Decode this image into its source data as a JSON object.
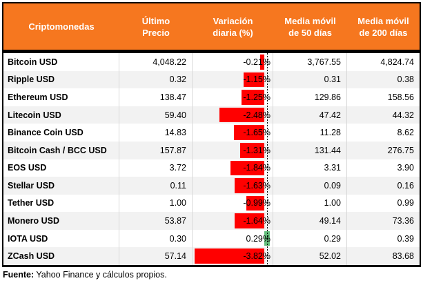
{
  "header": {
    "columns": [
      {
        "label": "Criptomonedas"
      },
      {
        "line1": "Último",
        "line2": "Precio"
      },
      {
        "line1": "Variación",
        "line2": "diaria (%)"
      },
      {
        "line1": "Media móvil",
        "line2": "de 50 días"
      },
      {
        "line1": "Media móvil",
        "line2": "de 200 días"
      }
    ]
  },
  "rows": [
    {
      "name": "Bitcoin USD",
      "last": "4,048.22",
      "variation": "-0.21%",
      "variation_value": -0.21,
      "ma50": "3,767.55",
      "ma200": "4,824.74"
    },
    {
      "name": "Ripple USD",
      "last": "0.32",
      "variation": "-1.15%",
      "variation_value": -1.15,
      "ma50": "0.31",
      "ma200": "0.38"
    },
    {
      "name": "Ethereum USD",
      "last": "138.47",
      "variation": "-1.25%",
      "variation_value": -1.25,
      "ma50": "129.86",
      "ma200": "158.56"
    },
    {
      "name": "Litecoin USD",
      "last": "59.40",
      "variation": "-2.48%",
      "variation_value": -2.48,
      "ma50": "47.42",
      "ma200": "44.32"
    },
    {
      "name": "Binance Coin USD",
      "last": "14.83",
      "variation": "-1.65%",
      "variation_value": -1.65,
      "ma50": "11.28",
      "ma200": "8.62"
    },
    {
      "name": "Bitcoin Cash / BCC USD",
      "last": "157.87",
      "variation": "-1.31%",
      "variation_value": -1.31,
      "ma50": "131.44",
      "ma200": "276.75"
    },
    {
      "name": "EOS USD",
      "last": "3.72",
      "variation": "-1.84%",
      "variation_value": -1.84,
      "ma50": "3.31",
      "ma200": "3.90"
    },
    {
      "name": "Stellar USD",
      "last": "0.11",
      "variation": "-1.63%",
      "variation_value": -1.63,
      "ma50": "0.09",
      "ma200": "0.16"
    },
    {
      "name": "Tether USD",
      "last": "1.00",
      "variation": "-0.99%",
      "variation_value": -0.99,
      "ma50": "1.00",
      "ma200": "0.99"
    },
    {
      "name": "Monero USD",
      "last": "53.87",
      "variation": "-1.64%",
      "variation_value": -1.64,
      "ma50": "49.14",
      "ma200": "73.36"
    },
    {
      "name": "IOTA USD",
      "last": "0.30",
      "variation": "0.29%",
      "variation_value": 0.29,
      "ma50": "0.29",
      "ma200": "0.39"
    },
    {
      "name": "ZCash USD",
      "last": "57.14",
      "variation": "-3.82%",
      "variation_value": -3.82,
      "ma50": "52.02",
      "ma200": "83.68"
    }
  ],
  "footer": {
    "source_label": "Fuente:",
    "source_text": " Yahoo Finance y cálculos propios."
  },
  "colors": {
    "header_bg": "#F6771F",
    "negative_bar": "#FF0000",
    "positive_bar": "#63BE7B",
    "alt_row_bg": "#F2F2F2",
    "divider": "#D9D9D9",
    "border": "#000000"
  },
  "chart_data": {
    "type": "table",
    "title": "Criptomonedas",
    "columns": [
      "Criptomonedas",
      "Último Precio",
      "Variación diaria (%)",
      "Media móvil de 50 días",
      "Media móvil de 200 días"
    ],
    "categories": [
      "Bitcoin USD",
      "Ripple USD",
      "Ethereum USD",
      "Litecoin USD",
      "Binance Coin USD",
      "Bitcoin Cash / BCC USD",
      "EOS USD",
      "Stellar USD",
      "Tether USD",
      "Monero USD",
      "IOTA USD",
      "ZCash USD"
    ],
    "series": [
      {
        "name": "Último Precio",
        "values": [
          4048.22,
          0.32,
          138.47,
          59.4,
          14.83,
          157.87,
          3.72,
          0.11,
          1.0,
          53.87,
          0.3,
          57.14
        ]
      },
      {
        "name": "Variación diaria (%)",
        "values": [
          -0.21,
          -1.15,
          -1.25,
          -2.48,
          -1.65,
          -1.31,
          -1.84,
          -1.63,
          -0.99,
          -1.64,
          0.29,
          -3.82
        ]
      },
      {
        "name": "Media móvil de 50 días",
        "values": [
          3767.55,
          0.31,
          129.86,
          47.42,
          11.28,
          131.44,
          3.31,
          0.09,
          1.0,
          49.14,
          0.29,
          52.02
        ]
      },
      {
        "name": "Media móvil de 200 días",
        "values": [
          4824.74,
          0.38,
          158.56,
          44.32,
          8.62,
          276.75,
          3.9,
          0.16,
          0.99,
          73.36,
          0.39,
          83.68
        ]
      }
    ],
    "annotations": "Variación diaria column rendered with in-cell data bars: negative values red bars extending left of a dotted zero axis, positive values green bars extending right",
    "source_note": "Fuente: Yahoo Finance y cálculos propios."
  }
}
